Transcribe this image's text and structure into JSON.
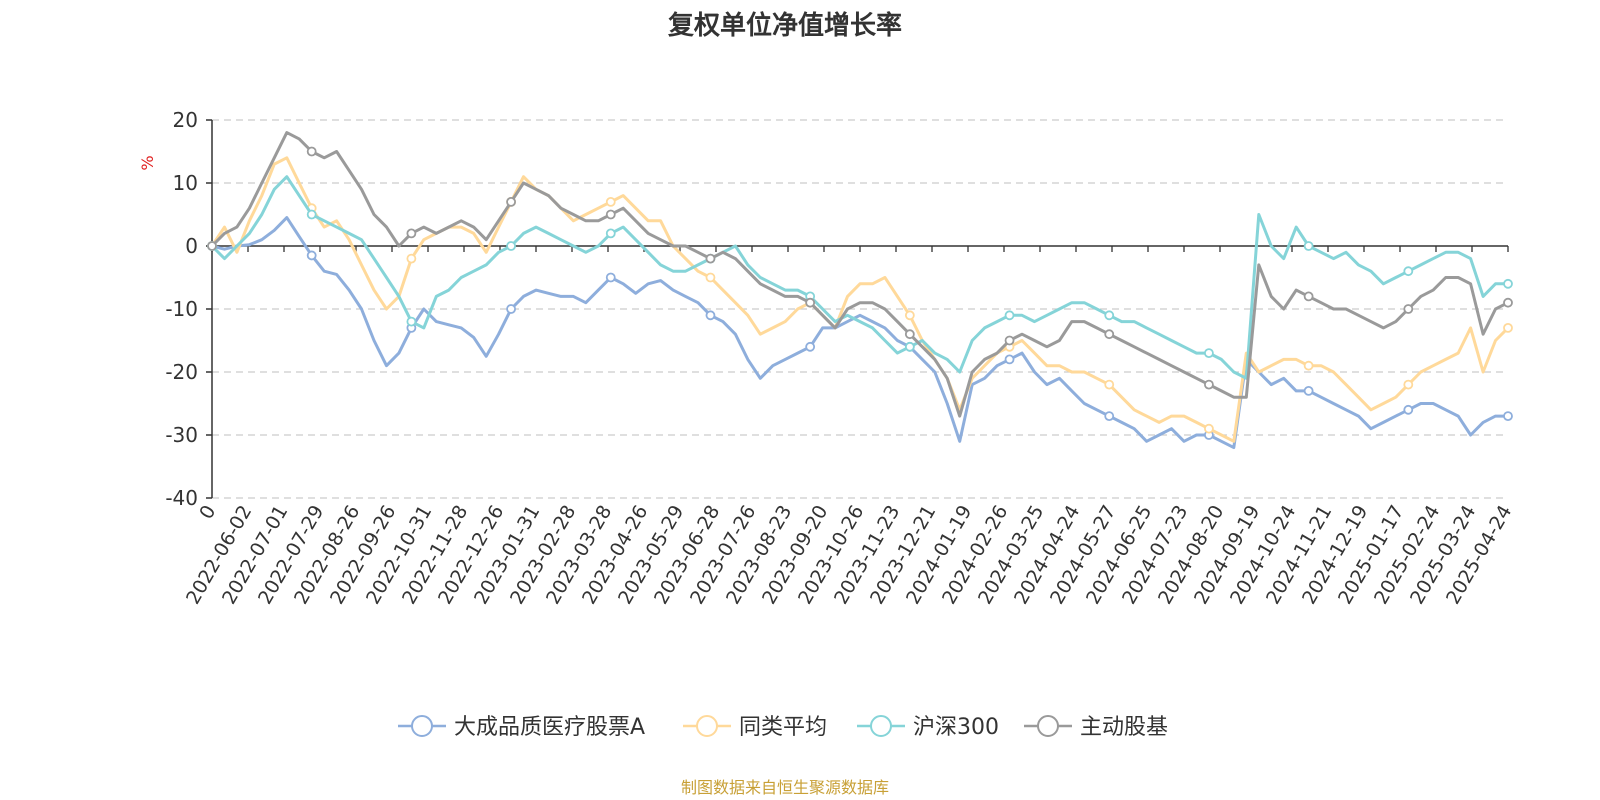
{
  "colors": {
    "series_1": "#8eaedc",
    "series_2": "#ffd99a",
    "series_3": "#85d4d8",
    "series_4": "#9a9a9a",
    "unit": "#e02020",
    "source": "#c8a036",
    "axis": "#333333",
    "grid": "#cccccc"
  },
  "chart_data": {
    "type": "line",
    "title": "复权单位净值增长率",
    "ylabel": "%",
    "ylim": [
      -40,
      20
    ],
    "yticks": [
      20,
      10,
      0,
      -10,
      -20,
      -30,
      -40
    ],
    "xticks": [
      "0",
      "2022-06-02",
      "2022-07-01",
      "2022-07-29",
      "2022-08-26",
      "2022-09-26",
      "2022-10-31",
      "2022-11-28",
      "2022-12-26",
      "2023-01-31",
      "2023-02-28",
      "2023-03-28",
      "2023-04-26",
      "2023-05-29",
      "2023-06-28",
      "2023-07-26",
      "2023-08-23",
      "2023-09-20",
      "2023-10-26",
      "2023-11-23",
      "2023-12-21",
      "2024-01-19",
      "2024-02-26",
      "2024-03-25",
      "2024-04-24",
      "2024-05-27",
      "2024-06-25",
      "2024-07-23",
      "2024-08-20",
      "2024-09-19",
      "2024-10-24",
      "2024-11-21",
      "2024-12-19",
      "2025-01-17",
      "2025-02-24",
      "2025-03-24",
      "2025-04-24"
    ],
    "grid": "horizontal dashed",
    "legend_position": "bottom",
    "x": [
      "2022-05-05",
      "2022-05-16",
      "2022-05-26",
      "2022-06-06",
      "2022-06-16",
      "2022-06-27",
      "2022-07-07",
      "2022-07-18",
      "2022-07-28",
      "2022-08-08",
      "2022-08-18",
      "2022-08-29",
      "2022-09-08",
      "2022-09-19",
      "2022-09-29",
      "2022-10-10",
      "2022-10-20",
      "2022-10-31",
      "2022-11-10",
      "2022-11-21",
      "2022-12-01",
      "2022-12-12",
      "2022-12-22",
      "2023-01-02",
      "2023-01-12",
      "2023-01-23",
      "2023-02-02",
      "2023-02-13",
      "2023-02-23",
      "2023-03-06",
      "2023-03-16",
      "2023-03-27",
      "2023-04-06",
      "2023-04-17",
      "2023-04-27",
      "2023-05-08",
      "2023-05-18",
      "2023-05-29",
      "2023-06-08",
      "2023-06-19",
      "2023-06-29",
      "2023-07-10",
      "2023-07-20",
      "2023-07-31",
      "2023-08-10",
      "2023-08-21",
      "2023-08-31",
      "2023-09-11",
      "2023-09-21",
      "2023-10-02",
      "2023-10-12",
      "2023-10-23",
      "2023-11-02",
      "2023-11-13",
      "2023-11-23",
      "2023-12-04",
      "2023-12-14",
      "2023-12-25",
      "2024-01-04",
      "2024-01-15",
      "2024-01-25",
      "2024-02-05",
      "2024-02-15",
      "2024-02-26",
      "2024-03-07",
      "2024-03-18",
      "2024-03-28",
      "2024-04-08",
      "2024-04-18",
      "2024-04-29",
      "2024-05-09",
      "2024-05-20",
      "2024-05-30",
      "2024-06-10",
      "2024-06-20",
      "2024-07-01",
      "2024-07-11",
      "2024-07-22",
      "2024-08-01",
      "2024-08-12",
      "2024-08-22",
      "2024-09-02",
      "2024-09-12",
      "2024-09-23",
      "2024-10-03",
      "2024-10-14",
      "2024-10-24",
      "2024-11-04",
      "2024-11-14",
      "2024-11-25",
      "2024-12-05",
      "2024-12-16",
      "2024-12-26",
      "2025-01-06",
      "2025-01-16",
      "2025-01-27",
      "2025-02-06",
      "2025-02-17",
      "2025-02-27",
      "2025-03-10",
      "2025-03-20",
      "2025-03-31",
      "2025-04-10",
      "2025-04-21",
      "2025-04-28"
    ],
    "series": [
      {
        "name": "大成品质医疗股票A",
        "color_key": "series_1",
        "values": [
          0,
          -0.5,
          0,
          0.2,
          1,
          2.5,
          4.5,
          1.5,
          -1.5,
          -4,
          -4.5,
          -7,
          -10,
          -15,
          -19,
          -17,
          -13,
          -10,
          -12,
          -12.5,
          -13,
          -14.5,
          -17.5,
          -14,
          -10,
          -8,
          -7,
          -7.5,
          -8,
          -8,
          -9,
          -7,
          -5,
          -6,
          -7.5,
          -6,
          -5.5,
          -7,
          -8,
          -9,
          -11,
          -12,
          -14,
          -18,
          -21,
          -19,
          -18,
          -17,
          -16,
          -13,
          -13,
          -12,
          -11,
          -12,
          -13,
          -15,
          -16,
          -18,
          -20,
          -25,
          -31,
          -22,
          -21,
          -19,
          -18,
          -17,
          -20,
          -22,
          -21,
          -23,
          -25,
          -26,
          -27,
          -28,
          -29,
          -31,
          -30,
          -29,
          -31,
          -30,
          -30,
          -31,
          -32,
          -18,
          -20,
          -22,
          -21,
          -23,
          -23,
          -24,
          -25,
          -26,
          -27,
          -29,
          -28,
          -27,
          -26,
          -25,
          -25,
          -26,
          -27,
          -30,
          -28,
          -27,
          -27
        ]
      },
      {
        "name": "同类平均",
        "color_key": "series_2",
        "values": [
          0,
          3,
          -1,
          4,
          8,
          13,
          14,
          10,
          6,
          3,
          4,
          1,
          -3,
          -7,
          -10,
          -8,
          -2,
          1,
          2,
          3,
          3,
          2,
          -1,
          3,
          7,
          11,
          9,
          8,
          6,
          4,
          5,
          6,
          7,
          8,
          6,
          4,
          4,
          0,
          -2,
          -4,
          -5,
          -7,
          -9,
          -11,
          -14,
          -13,
          -12,
          -10,
          -9,
          -11,
          -13,
          -8,
          -6,
          -6,
          -5,
          -8,
          -11,
          -15,
          -18,
          -21,
          -26,
          -21,
          -19,
          -17,
          -16,
          -15,
          -17,
          -19,
          -19,
          -20,
          -20,
          -21,
          -22,
          -24,
          -26,
          -27,
          -28,
          -27,
          -27,
          -28,
          -29,
          -30,
          -31,
          -17,
          -20,
          -19,
          -18,
          -18,
          -19,
          -19,
          -20,
          -22,
          -24,
          -26,
          -25,
          -24,
          -22,
          -20,
          -19,
          -18,
          -17,
          -13,
          -20,
          -15,
          -13
        ]
      },
      {
        "name": "沪深300",
        "color_key": "series_3",
        "values": [
          0,
          -2,
          0,
          2,
          5,
          9,
          11,
          8,
          5,
          4,
          3,
          2,
          1,
          -2,
          -5,
          -8,
          -12,
          -13,
          -8,
          -7,
          -5,
          -4,
          -3,
          -1,
          0,
          2,
          3,
          2,
          1,
          0,
          -1,
          0,
          2,
          3,
          1,
          -1,
          -3,
          -4,
          -4,
          -3,
          -2,
          -1,
          0,
          -3,
          -5,
          -6,
          -7,
          -7,
          -8,
          -10,
          -12,
          -11,
          -12,
          -13,
          -15,
          -17,
          -16,
          -15,
          -17,
          -18,
          -20,
          -15,
          -13,
          -12,
          -11,
          -11,
          -12,
          -11,
          -10,
          -9,
          -9,
          -10,
          -11,
          -12,
          -12,
          -13,
          -14,
          -15,
          -16,
          -17,
          -17,
          -18,
          -20,
          -21,
          5,
          0,
          -2,
          3,
          0,
          -1,
          -2,
          -1,
          -3,
          -4,
          -6,
          -5,
          -4,
          -3,
          -2,
          -1,
          -1,
          -2,
          -8,
          -6,
          -6
        ]
      },
      {
        "name": "主动股基",
        "color_key": "series_4",
        "values": [
          0,
          2,
          3,
          6,
          10,
          14,
          18,
          17,
          15,
          14,
          15,
          12,
          9,
          5,
          3,
          0,
          2,
          3,
          2,
          3,
          4,
          3,
          1,
          4,
          7,
          10,
          9,
          8,
          6,
          5,
          4,
          4,
          5,
          6,
          4,
          2,
          1,
          0,
          0,
          -1,
          -2,
          -1,
          -2,
          -4,
          -6,
          -7,
          -8,
          -8,
          -9,
          -11,
          -13,
          -10,
          -9,
          -9,
          -10,
          -12,
          -14,
          -16,
          -18,
          -21,
          -27,
          -20,
          -18,
          -17,
          -15,
          -14,
          -15,
          -16,
          -15,
          -12,
          -12,
          -13,
          -14,
          -15,
          -16,
          -17,
          -18,
          -19,
          -20,
          -21,
          -22,
          -23,
          -24,
          -24,
          -3,
          -8,
          -10,
          -7,
          -8,
          -9,
          -10,
          -10,
          -11,
          -12,
          -13,
          -12,
          -10,
          -8,
          -7,
          -5,
          -5,
          -6,
          -14,
          -10,
          -9
        ]
      }
    ]
  },
  "footer": {
    "source_text": "制图数据来自恒生聚源数据库"
  }
}
